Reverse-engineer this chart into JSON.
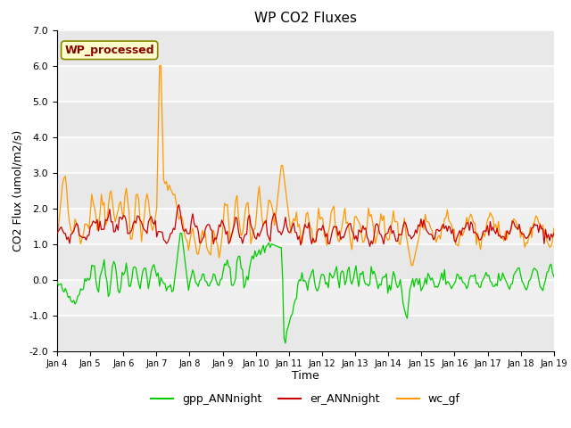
{
  "title": "WP CO2 Fluxes",
  "xlabel": "Time",
  "ylabel_display": "CO2 Flux (umol/m2/s)",
  "ylim": [
    -2.0,
    7.0
  ],
  "yticks": [
    -2.0,
    -1.0,
    0.0,
    1.0,
    2.0,
    3.0,
    4.0,
    5.0,
    6.0,
    7.0
  ],
  "xtick_labels": [
    "Jan 4",
    "Jan 5",
    "Jan 6",
    "Jan 7",
    "Jan 8",
    "Jan 9",
    "Jan 10",
    "Jan 11",
    "Jan 12",
    "Jan 13",
    "Jan 14",
    "Jan 15",
    "Jan 16",
    "Jan 17",
    "Jan 18",
    "Jan 19"
  ],
  "n_points": 360,
  "colors": {
    "gpp": "#00cc00",
    "er": "#cc0000",
    "wc": "#ff9900"
  },
  "legend_labels": [
    "gpp_ANNnight",
    "er_ANNnight",
    "wc_gf"
  ],
  "watermark_text": "WP_processed",
  "watermark_color": "#8b0000",
  "watermark_bg": "#ffffcc",
  "background_color": "#e8e8e8",
  "stripe_color": "#d0d0d0",
  "grid_color": "white",
  "title_fontsize": 11,
  "axis_label_fontsize": 9,
  "tick_fontsize": 8
}
